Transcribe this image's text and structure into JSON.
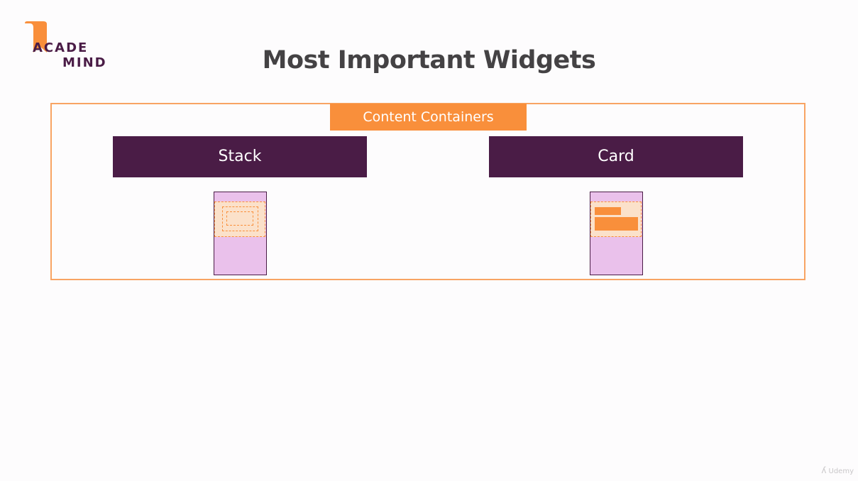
{
  "logo": {
    "line1": "ACADE",
    "line2": "MIND"
  },
  "title": "Most Important Widgets",
  "section": {
    "label": "Content Containers"
  },
  "widgets": [
    {
      "label": "Stack"
    },
    {
      "label": "Card"
    }
  ],
  "watermark": {
    "text": "Udemy"
  },
  "colors": {
    "brand_purple": "#4a1c46",
    "accent_orange": "#f98f3b",
    "frame_orange": "#f8a463",
    "phone_fill": "#eac1eb",
    "band_fill": "#fbe1ca",
    "title_gray": "#444244"
  }
}
